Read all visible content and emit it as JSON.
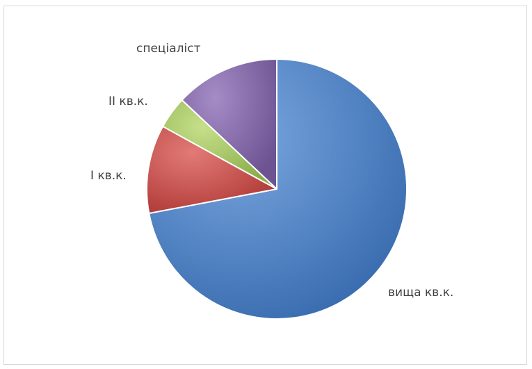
{
  "chart_data": {
    "type": "pie",
    "title": "",
    "legend": "none",
    "series": [
      {
        "values": [
          72,
          11,
          4,
          13
        ],
        "categories": [
          "вища кв.к.",
          "I кв.к.",
          "II кв.к.",
          "спеціаліст"
        ]
      }
    ],
    "categories": [
      "вища кв.к.",
      "I кв.к.",
      "II кв.к.",
      "спеціаліст"
    ],
    "values": [
      72,
      11,
      4,
      13
    ],
    "colors": [
      "#4a7ebb",
      "#c0504d",
      "#9bbb59",
      "#8064a2"
    ],
    "labels": {
      "vyshcha": "вища кв.к.",
      "first": "I кв.к.",
      "second": "II кв.к.",
      "specialist": "спеціаліст"
    }
  }
}
